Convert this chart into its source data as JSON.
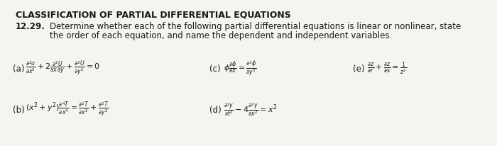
{
  "background_color": "#f5f4f0",
  "title": "CLASSIFICATION OF PARTIAL DIFFERENTIAL EQUATIONS",
  "problem_num": "12.29.",
  "problem_line1": "Determine whether each of the following partial differential equations is linear or nonlinear, state",
  "problem_line2": "the order of each equation, and name the dependent and independent variables.",
  "title_fontsize": 9.0,
  "text_fontsize": 8.5,
  "label_fontsize": 8.5,
  "math_fontsize": 8.0,
  "label_a": "(a)",
  "label_b": "(b)",
  "label_c": "(c)",
  "label_d": "(d)",
  "label_e": "(e)"
}
